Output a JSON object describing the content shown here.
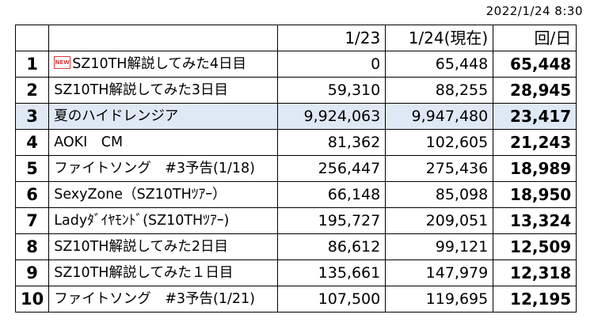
{
  "timestamp": "2022/1/24 8:30",
  "headers": {
    "rank": "",
    "title": "",
    "prev": "1/23",
    "curr": "1/24(現在)",
    "per_day": "回/日"
  },
  "rows": [
    {
      "rank": "1",
      "title": "SZ10TH解説してみた4日目",
      "badge": "NEW",
      "prev": "0",
      "curr": "65,448",
      "per_day": "65,448"
    },
    {
      "rank": "2",
      "title": "SZ10TH解説してみた3日目",
      "prev": "59,310",
      "curr": "88,255",
      "per_day": "28,945"
    },
    {
      "rank": "3",
      "title": "夏のハイドレンジア",
      "prev": "9,924,063",
      "curr": "9,947,480",
      "per_day": "23,417",
      "highlight": true
    },
    {
      "rank": "4",
      "title": "AOKI　CM",
      "prev": "81,362",
      "curr": "102,605",
      "per_day": "21,243"
    },
    {
      "rank": "5",
      "title": "ファイトソング　#3予告(1/18)",
      "prev": "256,447",
      "curr": "275,436",
      "per_day": "18,989"
    },
    {
      "rank": "6",
      "title": "SexyZone（SZ10THﾂｱｰ）",
      "prev": "66,148",
      "curr": "85,098",
      "per_day": "18,950"
    },
    {
      "rank": "7",
      "title": "Ladyﾀﾞｲﾔﾓﾝﾄﾞ(SZ10THﾂｱｰ)",
      "prev": "195,727",
      "curr": "209,051",
      "per_day": "13,324"
    },
    {
      "rank": "8",
      "title": "SZ10TH解説してみた2日目",
      "prev": "86,612",
      "curr": "99,121",
      "per_day": "12,509"
    },
    {
      "rank": "9",
      "title": "SZ10TH解説してみた１日目",
      "prev": "135,661",
      "curr": "147,979",
      "per_day": "12,318"
    },
    {
      "rank": "10",
      "title": "ファイトソング　#3予告(1/21)",
      "prev": "107,500",
      "curr": "119,695",
      "per_day": "12,195"
    }
  ],
  "colors": {
    "highlight_row": "#dfe9f5",
    "new_badge": "#e23a3a"
  },
  "icons": {
    "new_badge": "new-badge-icon"
  }
}
